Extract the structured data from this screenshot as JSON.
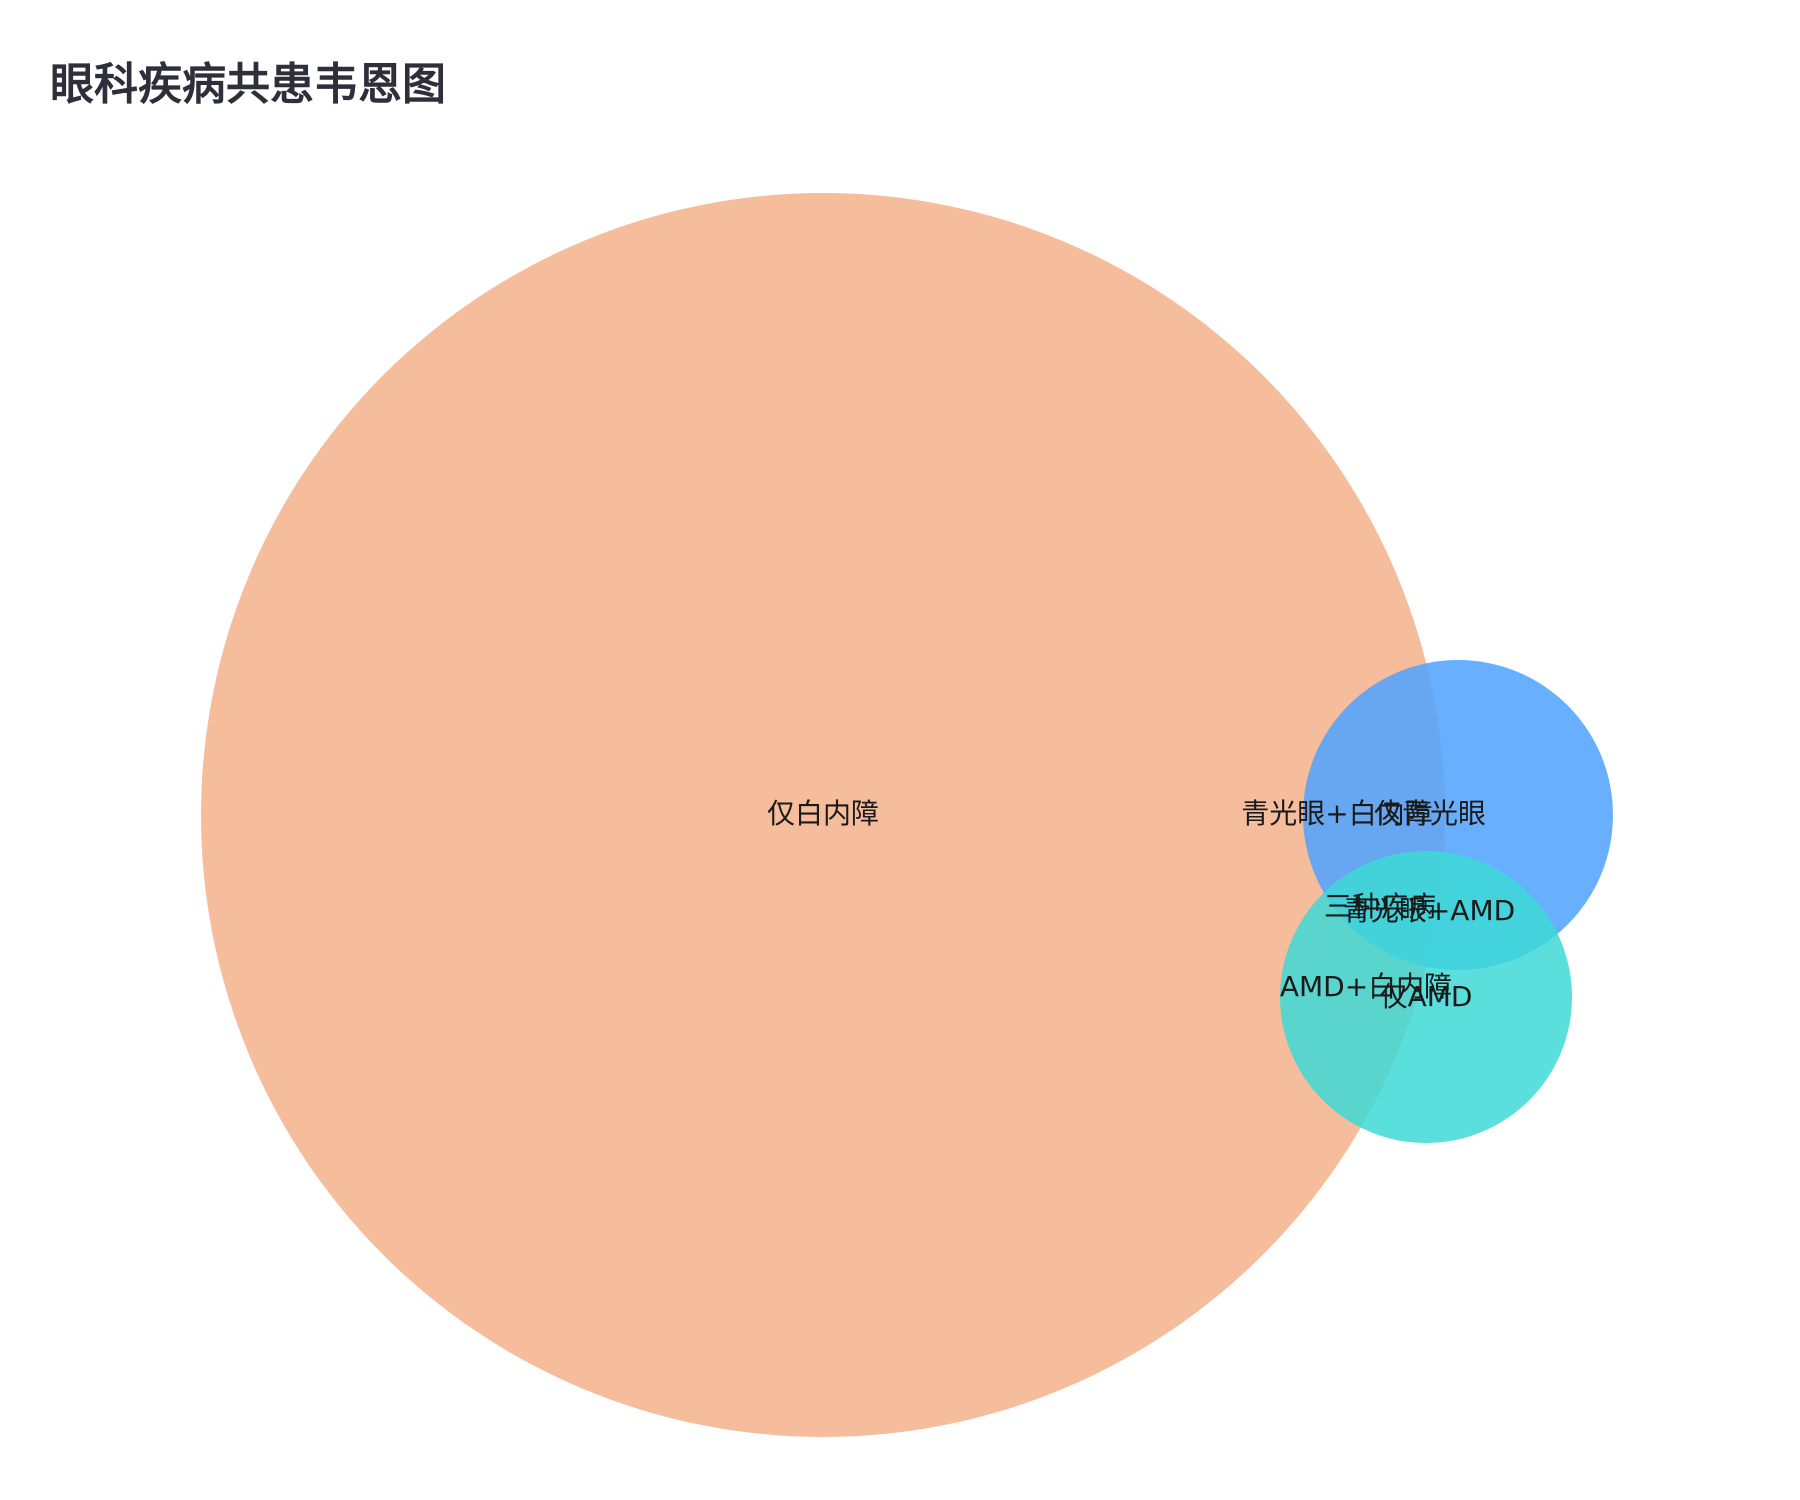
{
  "chart_data": {
    "type": "venn",
    "title": "眼科疾病共患韦恩图",
    "sets": [
      {
        "name": "白内障",
        "color": "#f4b18c"
      },
      {
        "name": "青光眼",
        "color": "#4da2ff"
      },
      {
        "name": "AMD",
        "color": "#3dd9d6"
      }
    ],
    "regions": [
      {
        "id": "cataract-only",
        "label": "仅白内障",
        "sets": [
          "白内障"
        ]
      },
      {
        "id": "glaucoma-only",
        "label": "仅青光眼",
        "sets": [
          "青光眼"
        ]
      },
      {
        "id": "amd-only",
        "label": "仅AMD",
        "sets": [
          "AMD"
        ]
      },
      {
        "id": "glaucoma-cataract",
        "label": "青光眼+白内障",
        "sets": [
          "青光眼",
          "白内障"
        ]
      },
      {
        "id": "glaucoma-amd",
        "label": "青光眼+AMD",
        "sets": [
          "青光眼",
          "AMD"
        ]
      },
      {
        "id": "amd-cataract",
        "label": "AMD+白内障",
        "sets": [
          "AMD",
          "白内障"
        ]
      },
      {
        "id": "all-three",
        "label": "三种疾病",
        "sets": [
          "白内障",
          "青光眼",
          "AMD"
        ]
      }
    ]
  }
}
